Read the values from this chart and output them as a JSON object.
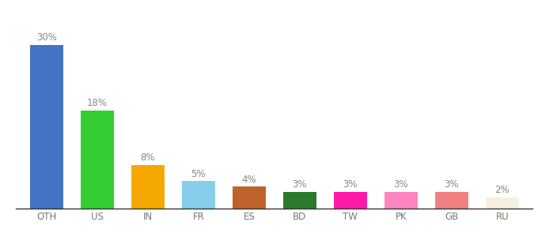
{
  "categories": [
    "OTH",
    "US",
    "IN",
    "FR",
    "ES",
    "BD",
    "TW",
    "PK",
    "GB",
    "RU"
  ],
  "values": [
    30,
    18,
    8,
    5,
    4,
    3,
    3,
    3,
    3,
    2
  ],
  "bar_colors": [
    "#4472c4",
    "#33cc33",
    "#f4a700",
    "#87ceeb",
    "#c0632a",
    "#2d7a2d",
    "#ff1aaa",
    "#ff85c0",
    "#f08080",
    "#f5f0e0"
  ],
  "labels": [
    "30%",
    "18%",
    "8%",
    "5%",
    "4%",
    "3%",
    "3%",
    "3%",
    "3%",
    "2%"
  ],
  "ylim": [
    0,
    36
  ],
  "background_color": "#ffffff",
  "label_color": "#888888",
  "label_fontsize": 8.5,
  "bar_width": 0.65,
  "figsize": [
    6.8,
    3.0
  ],
  "dpi": 100
}
